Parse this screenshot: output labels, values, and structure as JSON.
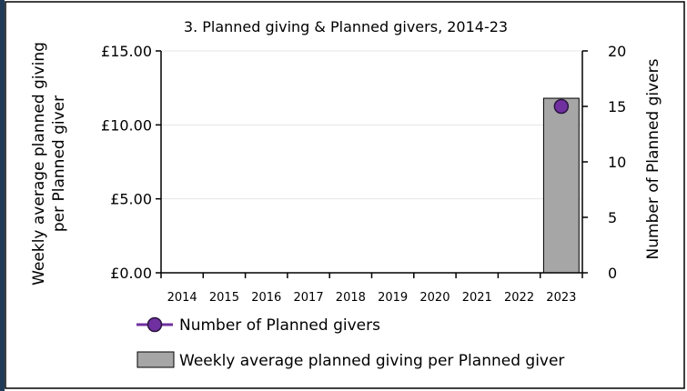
{
  "chart_data": {
    "type": "bar",
    "title": "3. Planned giving & Planned givers, 2014-23",
    "categories": [
      "2014",
      "2015",
      "2016",
      "2017",
      "2018",
      "2019",
      "2020",
      "2021",
      "2022",
      "2023"
    ],
    "left_axis": {
      "label_line1": "Weekly average planned giving",
      "label_line2": "per Planned giver",
      "range": [
        0,
        15
      ],
      "ticks": [
        0,
        5,
        10,
        15
      ],
      "tick_labels": [
        "£0.00",
        "£5.00",
        "£10.00",
        "£15.00"
      ]
    },
    "right_axis": {
      "label": "Number of Planned givers",
      "range": [
        0,
        20
      ],
      "ticks": [
        0,
        5,
        10,
        15,
        20
      ],
      "tick_labels": [
        "0",
        "5",
        "10",
        "15",
        "20"
      ]
    },
    "series": [
      {
        "name": "Weekly average planned giving per Planned giver",
        "type": "bar",
        "axis": "left",
        "color": "#a6a6a6",
        "values": [
          null,
          null,
          null,
          null,
          null,
          null,
          null,
          null,
          null,
          11.8
        ]
      },
      {
        "name": "Number of Planned givers",
        "type": "line",
        "axis": "right",
        "color": "#7030a0",
        "values": [
          null,
          null,
          null,
          null,
          null,
          null,
          null,
          null,
          null,
          15
        ]
      }
    ],
    "grid": true,
    "legend_position": "bottom-left"
  }
}
